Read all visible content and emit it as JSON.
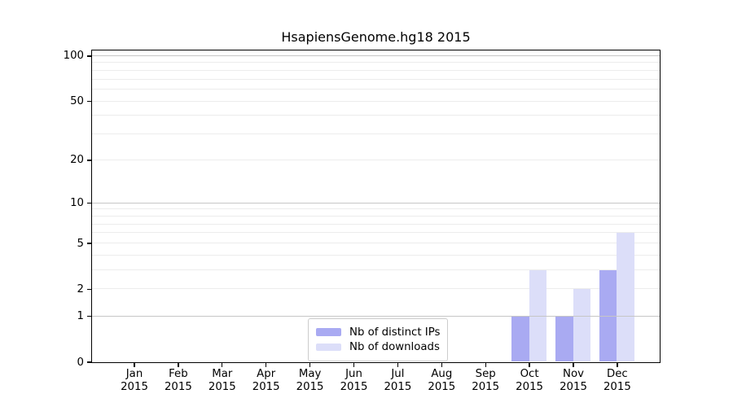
{
  "title": "HsapiensGenome.hg18 2015",
  "chart_data": {
    "type": "bar",
    "title": "HsapiensGenome.hg18 2015",
    "categories": [
      "Jan 2015",
      "Feb 2015",
      "Mar 2015",
      "Apr 2015",
      "May 2015",
      "Jun 2015",
      "Jul 2015",
      "Aug 2015",
      "Sep 2015",
      "Oct 2015",
      "Nov 2015",
      "Dec 2015"
    ],
    "series": [
      {
        "name": "Nb of distinct IPs",
        "color": "#a9aaf2",
        "values": [
          0,
          0,
          0,
          0,
          0,
          0,
          0,
          0,
          0,
          1,
          1,
          3
        ]
      },
      {
        "name": "Nb of downloads",
        "color": "#dcdef9",
        "values": [
          0,
          0,
          0,
          0,
          0,
          0,
          0,
          0,
          0,
          3,
          2,
          6
        ]
      }
    ],
    "yscale": "log1p",
    "ylim": [
      0,
      109
    ],
    "yticks": [
      0,
      1,
      2,
      5,
      10,
      20,
      50,
      100
    ],
    "ytick_labels": [
      "0",
      "1",
      "2",
      "5",
      "10",
      "20",
      "50",
      "100"
    ],
    "grid": "on",
    "legend_position": "lower center"
  },
  "x_axis": {
    "months": [
      "Jan",
      "Feb",
      "Mar",
      "Apr",
      "May",
      "Jun",
      "Jul",
      "Aug",
      "Sep",
      "Oct",
      "Nov",
      "Dec"
    ],
    "year": "2015"
  },
  "y_axis": {
    "tick_labels": [
      "0",
      "1",
      "2",
      "5",
      "10",
      "20",
      "50",
      "100"
    ]
  },
  "legend": {
    "items": [
      {
        "label": "Nb of distinct IPs",
        "color": "#a9aaf2"
      },
      {
        "label": "Nb of downloads",
        "color": "#dcdef9"
      }
    ]
  },
  "colors": {
    "bar_distinct_ips": "#a9aaf2",
    "bar_downloads": "#dcdef9",
    "grid_major": "#c6c6c6",
    "grid_minor": "#ececec",
    "axis": "#000000",
    "legend_border": "#cccccc"
  }
}
